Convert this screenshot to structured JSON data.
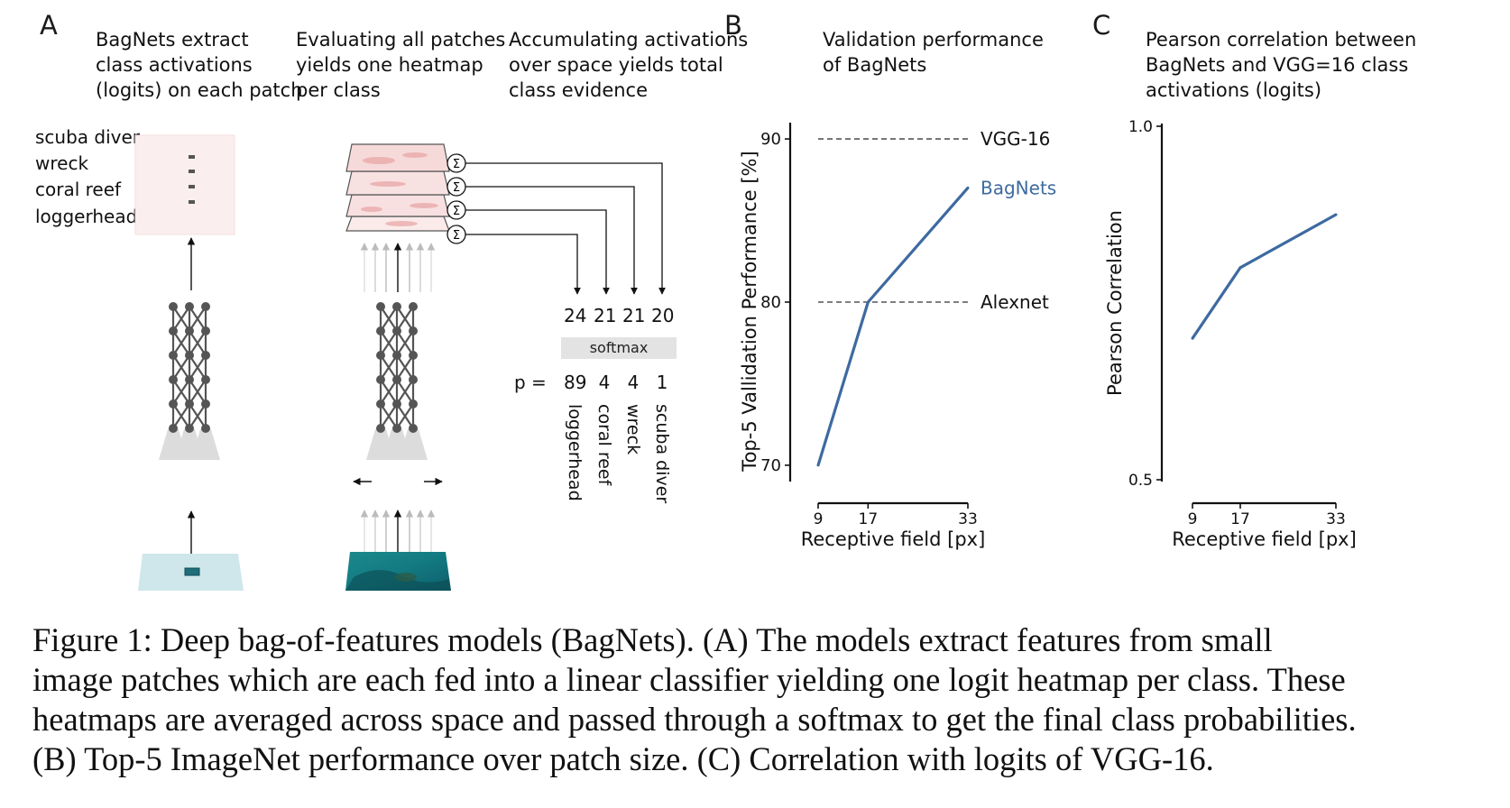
{
  "panelA": {
    "letter": "A",
    "desc1": "BagNets extract\nclass activations\n(logits) on each patch",
    "desc2": "Evaluating all patches\nyields one heatmap\nper class",
    "desc3": "Accumulating activations\nover space yields total\nclass evidence",
    "classes": [
      "scuba diver",
      "wreck",
      "coral reef",
      "loggerhead"
    ],
    "logits": [
      "24",
      "21",
      "21",
      "20"
    ],
    "softmax_label": "softmax",
    "p_label": "p =",
    "probs": [
      "89",
      "4",
      "4",
      "1"
    ],
    "result_classes": [
      "loggerhead",
      "coral reef",
      "wreck",
      "scuba diver"
    ],
    "sigma_symbol": "Σ"
  },
  "panelB": {
    "letter": "B",
    "desc": "Validation performance\nof BagNets",
    "ref_labels": [
      "VGG-16",
      "Alexnet"
    ],
    "series_label": "BagNets"
  },
  "panelC": {
    "letter": "C",
    "desc": "Pearson correlation between\nBagNets and VGG=16 class\nactivations (logits)"
  },
  "chart_data": [
    {
      "type": "line",
      "xlabel": "Receptive field [px]",
      "ylabel": "Top-5 Vallidation Performance [%]",
      "x": [
        9,
        17,
        33
      ],
      "xticks": [
        "9",
        "17",
        "33"
      ],
      "yticks": [
        "70",
        "80",
        "90"
      ],
      "ylim": [
        69,
        91
      ],
      "series": [
        {
          "name": "BagNets",
          "values": [
            70,
            80,
            87
          ]
        }
      ],
      "reference_lines": [
        {
          "name": "VGG-16",
          "value": 90
        },
        {
          "name": "Alexnet",
          "value": 80
        }
      ],
      "colors": {
        "series": "#3d6aa0",
        "reference": "#555555"
      }
    },
    {
      "type": "line",
      "xlabel": "Receptive field [px]",
      "ylabel": "Pearson Correlation",
      "x": [
        9,
        17,
        33
      ],
      "xticks": [
        "9",
        "17",
        "33"
      ],
      "yticks": [
        "0.5",
        "1.0"
      ],
      "ylim": [
        0.5,
        1.0
      ],
      "series": [
        {
          "values": [
            0.7,
            0.8,
            0.875
          ]
        }
      ],
      "colors": {
        "series": "#3d6aa0"
      }
    }
  ],
  "caption": {
    "line1": "Figure 1:  Deep bag-of-features models (BagNets).  (A) The models extract features from small",
    "line2": "image patches which are each fed into a linear classifier yielding one logit heatmap per class. These",
    "line3": "heatmaps are averaged across space and passed through a softmax to get the final class probabilities.",
    "line4": "(B) Top-5 ImageNet performance over patch size. (C) Correlation with logits of VGG-16."
  }
}
